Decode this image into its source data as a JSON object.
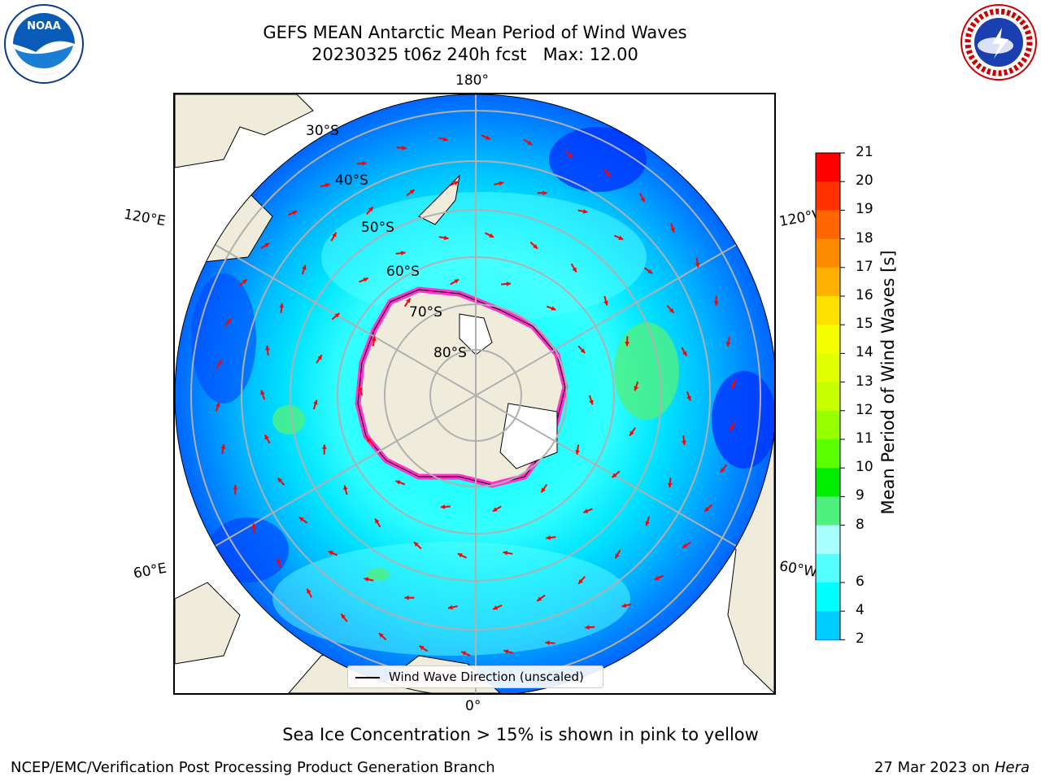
{
  "header": {
    "title": "GEFS MEAN Antarctic Mean Period of Wind Waves",
    "subtitle": "20230325 t06z 240h fcst   Max: 12.00",
    "logo_left": "NOAA",
    "logo_right": "NATIONAL WEATHER SERVICE"
  },
  "map": {
    "projection": "south-polar-stereographic",
    "lon_labels": {
      "top": "180°",
      "bottom": "0°",
      "upper_left": "120°E",
      "upper_right": "120°W",
      "lower_left": "60°E",
      "lower_right": "60°W"
    },
    "lat_labels": [
      "30°S",
      "40°S",
      "50°S",
      "60°S",
      "70°S",
      "80°S"
    ],
    "legend": "Wind Wave Direction (unscaled)",
    "colors": {
      "land": "#efecdc",
      "ice_edge": "#ff33cc",
      "arrow": "#ff0000",
      "grid": "#b0b0b0"
    }
  },
  "colorbar": {
    "label": "Mean Period of Wind Waves [s]",
    "ticks": [
      "21",
      "20",
      "19",
      "18",
      "17",
      "16",
      "15",
      "14",
      "13",
      "12",
      "11",
      "10",
      "9",
      "8",
      "6",
      "4",
      "2"
    ],
    "colors": [
      "#ff0000",
      "#ff3300",
      "#ff6600",
      "#ff8c00",
      "#ffb000",
      "#ffe000",
      "#f5ff00",
      "#e0ff00",
      "#c8ff00",
      "#96ff00",
      "#5aff00",
      "#00ee00",
      "#50f080",
      "#aaffff",
      "#55ffff",
      "#00ffff",
      "#00ccff",
      "#0066ff"
    ],
    "extend_color": "#0000ff"
  },
  "footer": {
    "note": "Sea Ice Concentration > 15% is shown in pink to yellow",
    "left": "NCEP/EMC/Verification Post Processing Product Generation Branch",
    "date": "27 Mar 2023 on",
    "machine": "Hera"
  }
}
